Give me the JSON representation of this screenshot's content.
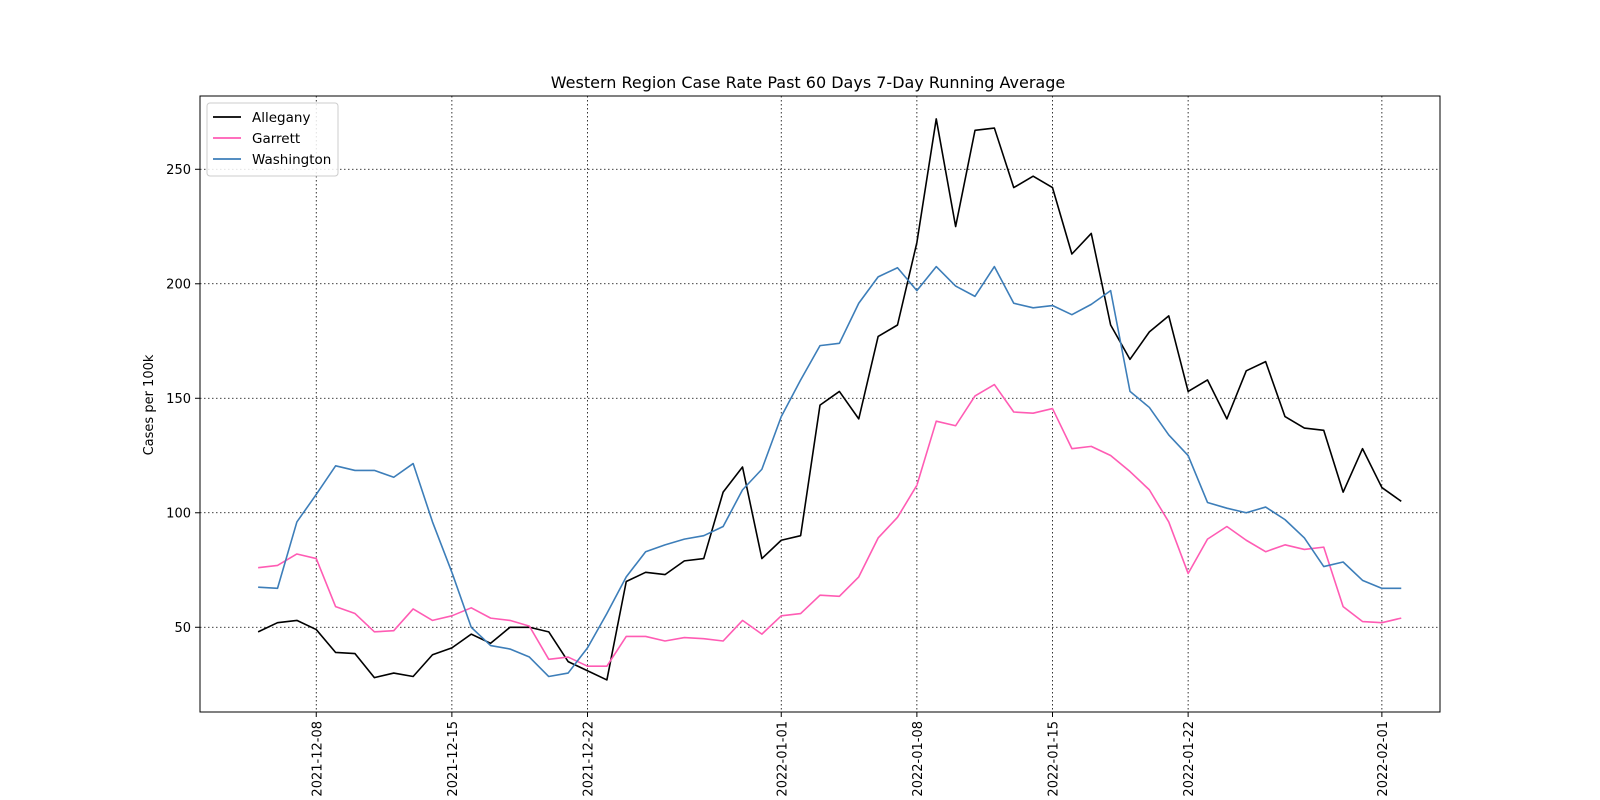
{
  "chart_data": {
    "type": "line",
    "title": "Western Region Case Rate  Past 60 Days 7-Day Running Average",
    "xlabel": "",
    "ylabel": "Cases per 100k",
    "x_start": "2021-12-05",
    "x_end": "2022-02-02",
    "xlim": [
      "2021-12-02",
      "2022-02-04"
    ],
    "ylim": [
      13,
      282
    ],
    "x_ticks": [
      "2021-12-08",
      "2021-12-15",
      "2021-12-22",
      "2022-01-01",
      "2022-01-08",
      "2022-01-15",
      "2022-01-22",
      "2022-02-01"
    ],
    "y_ticks": [
      50,
      100,
      150,
      200,
      250
    ],
    "grid": true,
    "legend_position": "top-left",
    "series": [
      {
        "name": "Allegany",
        "color": "#000000",
        "values": [
          48,
          52,
          53,
          49,
          39,
          38.5,
          28,
          30,
          28.5,
          38,
          41,
          47,
          43,
          50,
          50,
          48,
          35,
          31,
          27,
          70,
          74,
          73,
          79,
          80,
          109,
          120,
          80,
          88,
          90,
          147,
          153,
          141,
          177,
          182,
          218,
          272,
          225,
          267,
          268,
          242,
          247,
          242,
          213,
          222,
          182,
          167,
          179,
          186,
          153,
          158,
          141,
          162,
          166,
          142,
          137,
          136,
          109,
          128,
          111,
          105
        ]
      },
      {
        "name": "Garrett",
        "color": "#ff5cb4",
        "values": [
          76,
          77,
          82,
          80,
          59,
          56,
          48,
          48.5,
          58,
          53,
          55,
          58.5,
          54,
          53,
          50.5,
          36,
          37,
          33,
          33,
          46,
          46,
          44,
          45.5,
          45,
          44,
          53,
          47,
          55,
          56,
          64,
          63.5,
          72,
          89,
          98,
          112,
          140,
          138,
          151,
          156,
          144,
          143.5,
          145.5,
          128,
          129,
          125,
          118,
          110,
          96,
          73.5,
          88.5,
          94,
          88,
          83,
          86,
          84,
          85,
          59,
          52.5,
          52,
          54
        ]
      },
      {
        "name": "Washington",
        "color": "#3d7eb9",
        "values": [
          67.5,
          67,
          96,
          108,
          120.5,
          118.5,
          118.5,
          115.5,
          121.5,
          96,
          74,
          50,
          42,
          40.5,
          37,
          28.5,
          30,
          41,
          56,
          72,
          83,
          86,
          88.5,
          90,
          94,
          110,
          119,
          142,
          158,
          173,
          174,
          191.5,
          203,
          207,
          197,
          207.5,
          199,
          194.5,
          207.5,
          191.5,
          189.5,
          190.5,
          186.5,
          191,
          197,
          153,
          146,
          134,
          125,
          104.5,
          102,
          100,
          102.5,
          97,
          89,
          76.5,
          78.5,
          70.5,
          67,
          67
        ]
      }
    ]
  }
}
